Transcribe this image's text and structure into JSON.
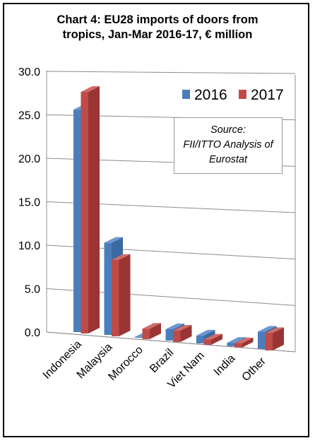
{
  "title_line1": "Chart 4: EU28 imports of doors from",
  "title_line2": "tropics, Jan-Mar 2016-17, € million",
  "source_note": {
    "line1": "Source:",
    "line2": "FII/ITTO Analysis of",
    "line3": "Eurostat"
  },
  "colors": {
    "s2016_front": "#4a7ebb",
    "s2016_side": "#3a6aa3",
    "s2016_top": "#6d98cf",
    "s2017_front": "#be4b48",
    "s2017_side": "#9a3533",
    "s2017_top": "#d26c69"
  },
  "chart_data": {
    "type": "bar",
    "title": "Chart 4: EU28 imports of doors from tropics, Jan-Mar 2016-17, € million",
    "xlabel": "",
    "ylabel": "",
    "ylim": [
      0,
      30
    ],
    "yticks": [
      "0.0",
      "5.0",
      "10.0",
      "15.0",
      "20.0",
      "25.0",
      "30.0"
    ],
    "categories": [
      "Indonesia",
      "Malaysia",
      "Morocco",
      "Brazil",
      "Viet Nam",
      "India",
      "Other"
    ],
    "series": [
      {
        "name": "2016",
        "values": [
          25.6,
          10.6,
          0.1,
          1.3,
          0.9,
          0.4,
          2.0
        ]
      },
      {
        "name": "2017",
        "values": [
          27.8,
          8.8,
          1.2,
          1.3,
          0.6,
          0.5,
          2.0
        ]
      }
    ],
    "grid": true,
    "legend": "top-right"
  }
}
